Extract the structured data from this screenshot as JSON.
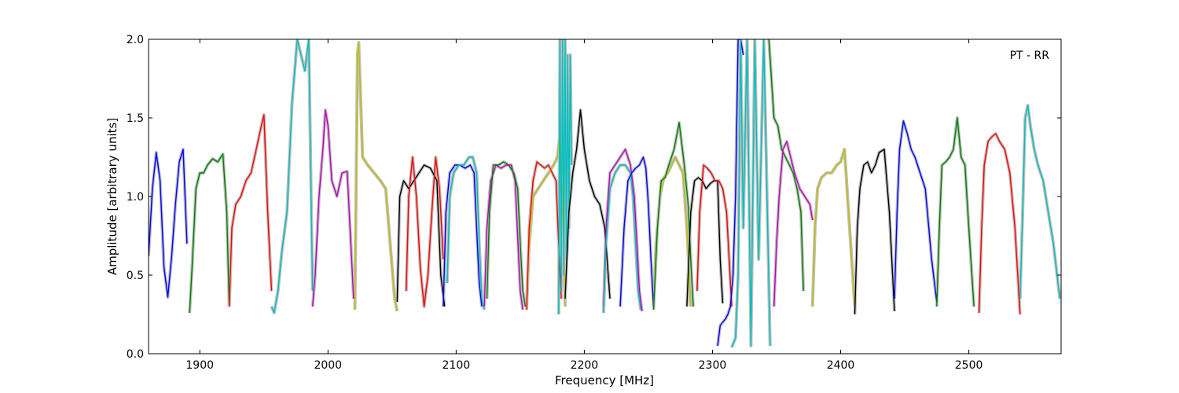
{
  "chart_data": {
    "type": "line",
    "title": "",
    "xlabel": "Frequency [MHz]",
    "ylabel": "Amplitude [arbitrary units]",
    "annotation": "PT - RR",
    "xlim": [
      1860,
      2572
    ],
    "ylim": [
      0.0,
      2.0
    ],
    "xticks": [
      1900,
      2000,
      2100,
      2200,
      2300,
      2400,
      2500
    ],
    "xtick_labels": [
      "1900",
      "2000",
      "2100",
      "2200",
      "2300",
      "2400",
      "2500"
    ],
    "yticks": [
      0.0,
      0.5,
      1.0,
      1.5,
      2.0
    ],
    "ytick_labels": [
      "0.0",
      "0.5",
      "1.0",
      "1.5",
      "2.0"
    ],
    "grid": false,
    "background_color": "#c0c0c0",
    "subbands": [
      {
        "color": "#0000ff",
        "x": [
          1860,
          1863,
          1866,
          1869,
          1872,
          1875,
          1878,
          1881,
          1884,
          1887,
          1890
        ],
        "y": [
          0.62,
          1.05,
          1.28,
          1.1,
          0.55,
          0.36,
          0.62,
          0.95,
          1.22,
          1.3,
          0.7
        ]
      },
      {
        "color": "#008000",
        "x": [
          1892,
          1894,
          1897,
          1900,
          1903,
          1906,
          1910,
          1914,
          1918,
          1921,
          1923
        ],
        "y": [
          0.26,
          0.55,
          1.05,
          1.15,
          1.15,
          1.2,
          1.24,
          1.22,
          1.27,
          0.9,
          0.3
        ]
      },
      {
        "color": "#ff0000",
        "x": [
          1923,
          1925,
          1928,
          1932,
          1936,
          1940,
          1944,
          1948,
          1950,
          1953,
          1956
        ],
        "y": [
          0.3,
          0.8,
          0.95,
          1.0,
          1.1,
          1.15,
          1.3,
          1.45,
          1.52,
          0.9,
          0.4
        ]
      },
      {
        "color": "#00bfbf",
        "x": [
          1956,
          1958,
          1961,
          1964,
          1968,
          1972,
          1976,
          1979,
          1982,
          1985,
          1988
        ],
        "y": [
          0.3,
          0.26,
          0.4,
          0.65,
          0.9,
          1.6,
          2.0,
          1.9,
          1.8,
          2.0,
          0.4
        ]
      },
      {
        "color": "#bf00bf",
        "x": [
          1988,
          1990,
          1993,
          1996,
          1998,
          2000,
          2003,
          2007,
          2011,
          2015,
          2020
        ],
        "y": [
          0.3,
          0.5,
          1.0,
          1.3,
          1.55,
          1.45,
          1.1,
          1.0,
          1.15,
          1.16,
          0.35
        ]
      },
      {
        "color": "#bfbf00",
        "x": [
          2021,
          2023,
          2024,
          2027,
          2031,
          2036,
          2041,
          2045,
          2049,
          2052,
          2054
        ],
        "y": [
          0.28,
          1.9,
          1.98,
          1.25,
          1.2,
          1.15,
          1.1,
          1.05,
          0.65,
          0.35,
          0.27
        ]
      },
      {
        "color": "#000000",
        "x": [
          2054,
          2056,
          2059,
          2063,
          2067,
          2071,
          2075,
          2080,
          2085,
          2088,
          2091
        ],
        "y": [
          0.33,
          1.0,
          1.1,
          1.05,
          1.1,
          1.15,
          1.2,
          1.18,
          1.1,
          0.5,
          0.3
        ]
      },
      {
        "color": "#ff0000",
        "x": [
          2061,
          2063,
          2066,
          2069,
          2072,
          2075,
          2078,
          2081,
          2084,
          2087,
          2090
        ],
        "y": [
          0.4,
          1.0,
          1.25,
          1.0,
          0.55,
          0.3,
          0.5,
          0.9,
          1.25,
          1.05,
          0.6
        ]
      },
      {
        "color": "#0000ff",
        "x": [
          2090,
          2092,
          2095,
          2099,
          2103,
          2107,
          2111,
          2114,
          2116,
          2118,
          2120
        ],
        "y": [
          0.3,
          0.9,
          1.15,
          1.2,
          1.2,
          1.18,
          1.2,
          1.15,
          0.8,
          0.45,
          0.3
        ]
      },
      {
        "color": "#00bfbf",
        "x": [
          2093,
          2095,
          2098,
          2102,
          2106,
          2110,
          2113,
          2116,
          2118,
          2120,
          2122
        ],
        "y": [
          0.45,
          1.0,
          1.15,
          1.2,
          1.2,
          1.25,
          1.25,
          1.15,
          0.7,
          0.35,
          0.28
        ]
      },
      {
        "color": "#bf00bf",
        "x": [
          2122,
          2124,
          2127,
          2131,
          2135,
          2139,
          2143,
          2146,
          2148,
          2150,
          2152
        ],
        "y": [
          0.3,
          0.8,
          1.1,
          1.2,
          1.18,
          1.2,
          1.2,
          1.1,
          0.75,
          0.4,
          0.28
        ]
      },
      {
        "color": "#008000",
        "x": [
          2124,
          2126,
          2129,
          2133,
          2137,
          2141,
          2145,
          2148,
          2150,
          2152,
          2154
        ],
        "y": [
          0.35,
          0.9,
          1.2,
          1.2,
          1.22,
          1.2,
          1.15,
          1.05,
          0.7,
          0.4,
          0.3
        ]
      },
      {
        "color": "#bfbf00",
        "x": [
          2155,
          2157,
          2160,
          2164,
          2168,
          2172,
          2176,
          2179,
          2181,
          2183,
          2185
        ],
        "y": [
          0.3,
          0.7,
          1.0,
          1.05,
          1.1,
          1.15,
          1.2,
          1.25,
          1.4,
          1.0,
          0.3
        ]
      },
      {
        "color": "#ff0000",
        "x": [
          2155,
          2157,
          2160,
          2163,
          2166,
          2169,
          2172,
          2175,
          2178,
          2180,
          2182
        ],
        "y": [
          0.28,
          0.8,
          1.1,
          1.22,
          1.2,
          1.18,
          1.2,
          1.15,
          1.1,
          0.7,
          0.35
        ]
      },
      {
        "color": "#00bfbf",
        "x": [
          2180,
          2181,
          2182,
          2183,
          2184,
          2185,
          2186,
          2187,
          2188,
          2189,
          2190
        ],
        "y": [
          0.25,
          2.0,
          0.4,
          2.0,
          0.5,
          2.0,
          0.6,
          1.9,
          0.8,
          1.9,
          1.2
        ]
      },
      {
        "color": "#000000",
        "x": [
          2185,
          2188,
          2191,
          2194,
          2197,
          2200,
          2204,
          2208,
          2212,
          2216,
          2220
        ],
        "y": [
          0.35,
          0.9,
          1.15,
          1.3,
          1.55,
          1.3,
          1.1,
          1.0,
          0.95,
          0.8,
          0.35
        ]
      },
      {
        "color": "#bf00bf",
        "x": [
          2215,
          2217,
          2220,
          2224,
          2228,
          2232,
          2236,
          2239,
          2241,
          2243,
          2245
        ],
        "y": [
          0.3,
          0.8,
          1.15,
          1.2,
          1.25,
          1.3,
          1.2,
          1.0,
          0.7,
          0.4,
          0.27
        ]
      },
      {
        "color": "#00bfbf",
        "x": [
          2215,
          2217,
          2220,
          2224,
          2228,
          2232,
          2236,
          2238,
          2240,
          2242,
          2244
        ],
        "y": [
          0.26,
          0.7,
          1.05,
          1.15,
          1.2,
          1.2,
          1.15,
          1.0,
          0.7,
          0.4,
          0.28
        ]
      },
      {
        "color": "#0000ff",
        "x": [
          2228,
          2231,
          2234,
          2237,
          2240,
          2243,
          2246,
          2248,
          2250,
          2252,
          2254
        ],
        "y": [
          0.3,
          0.8,
          1.1,
          1.15,
          1.18,
          1.2,
          1.25,
          1.18,
          0.95,
          0.6,
          0.3
        ]
      },
      {
        "color": "#bfbf00",
        "x": [
          2254,
          2256,
          2259,
          2262,
          2265,
          2268,
          2271,
          2274,
          2277,
          2280,
          2283
        ],
        "y": [
          0.3,
          0.7,
          1.0,
          1.12,
          1.15,
          1.2,
          1.25,
          1.2,
          1.15,
          0.8,
          0.3
        ]
      },
      {
        "color": "#008000",
        "x": [
          2254,
          2257,
          2260,
          2263,
          2266,
          2270,
          2274,
          2278,
          2281,
          2283,
          2285
        ],
        "y": [
          0.28,
          0.8,
          1.1,
          1.12,
          1.2,
          1.3,
          1.47,
          1.2,
          0.95,
          0.6,
          0.3
        ]
      },
      {
        "color": "#000000",
        "x": [
          2280,
          2283,
          2286,
          2289,
          2292,
          2295,
          2298,
          2301,
          2304,
          2306,
          2308
        ],
        "y": [
          0.3,
          0.9,
          1.1,
          1.12,
          1.1,
          1.05,
          1.08,
          1.1,
          1.1,
          0.6,
          0.32
        ]
      },
      {
        "color": "#ff0000",
        "x": [
          2288,
          2290,
          2293,
          2296,
          2299,
          2302,
          2305,
          2308,
          2311,
          2313,
          2315
        ],
        "y": [
          0.4,
          0.9,
          1.2,
          1.18,
          1.15,
          1.1,
          1.1,
          1.05,
          0.9,
          0.6,
          0.3
        ]
      },
      {
        "color": "#0000ff",
        "x": [
          2304,
          2306,
          2308,
          2310,
          2312,
          2314,
          2316,
          2318,
          2320,
          2322,
          2324
        ],
        "y": [
          0.05,
          0.18,
          0.2,
          0.22,
          0.25,
          0.3,
          0.5,
          1.0,
          2.0,
          2.0,
          1.9
        ]
      },
      {
        "color": "#00bfbf",
        "x": [
          2315,
          2318,
          2320,
          2322,
          2324,
          2327,
          2330,
          2333,
          2336,
          2340,
          2345
        ],
        "y": [
          0.04,
          0.1,
          0.5,
          2.0,
          0.8,
          2.0,
          0.05,
          2.0,
          0.6,
          2.0,
          0.05
        ]
      },
      {
        "color": "#008000",
        "x": [
          2344,
          2346,
          2348,
          2351,
          2354,
          2357,
          2360,
          2363,
          2366,
          2369,
          2371
        ],
        "y": [
          2.0,
          1.75,
          1.5,
          1.45,
          1.3,
          1.25,
          1.2,
          1.15,
          1.05,
          0.9,
          0.4
        ]
      },
      {
        "color": "#bf00bf",
        "x": [
          2348,
          2350,
          2352,
          2355,
          2358,
          2361,
          2364,
          2368,
          2372,
          2376,
          2378
        ],
        "y": [
          0.3,
          0.7,
          1.0,
          1.3,
          1.35,
          1.25,
          1.15,
          1.05,
          1.0,
          0.95,
          0.85
        ]
      },
      {
        "color": "#bfbf00",
        "x": [
          2378,
          2380,
          2382,
          2385,
          2389,
          2393,
          2397,
          2400,
          2403,
          2407,
          2411
        ],
        "y": [
          0.3,
          0.8,
          1.05,
          1.12,
          1.15,
          1.15,
          1.2,
          1.22,
          1.3,
          0.8,
          0.3
        ]
      },
      {
        "color": "#000000",
        "x": [
          2411,
          2413,
          2415,
          2418,
          2421,
          2424,
          2427,
          2430,
          2434,
          2438,
          2442
        ],
        "y": [
          0.25,
          0.8,
          1.05,
          1.2,
          1.22,
          1.15,
          1.2,
          1.28,
          1.3,
          0.9,
          0.27
        ]
      },
      {
        "color": "#0000ff",
        "x": [
          2442,
          2444,
          2446,
          2449,
          2452,
          2455,
          2458,
          2462,
          2466,
          2471,
          2475
        ],
        "y": [
          0.35,
          0.9,
          1.3,
          1.48,
          1.4,
          1.3,
          1.25,
          1.15,
          1.05,
          0.6,
          0.33
        ]
      },
      {
        "color": "#008000",
        "x": [
          2475,
          2477,
          2479,
          2482,
          2485,
          2488,
          2491,
          2494,
          2497,
          2500,
          2504
        ],
        "y": [
          0.3,
          0.8,
          1.2,
          1.22,
          1.25,
          1.3,
          1.5,
          1.25,
          1.2,
          0.8,
          0.3
        ]
      },
      {
        "color": "#ff0000",
        "x": [
          2508,
          2510,
          2512,
          2515,
          2518,
          2521,
          2524,
          2528,
          2532,
          2536,
          2540
        ],
        "y": [
          0.26,
          0.8,
          1.2,
          1.35,
          1.38,
          1.4,
          1.35,
          1.3,
          1.15,
          0.8,
          0.25
        ]
      },
      {
        "color": "#00bfbf",
        "x": [
          2540,
          2542,
          2544,
          2546,
          2548,
          2551,
          2554,
          2558,
          2562,
          2566,
          2571
        ],
        "y": [
          0.35,
          0.9,
          1.5,
          1.58,
          1.45,
          1.3,
          1.2,
          1.1,
          0.9,
          0.7,
          0.35
        ]
      }
    ]
  }
}
